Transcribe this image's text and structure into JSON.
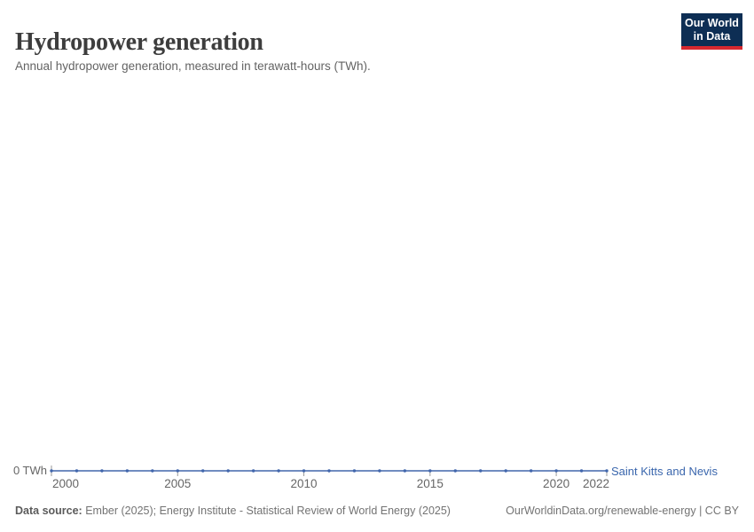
{
  "header": {
    "title": "Hydropower generation",
    "subtitle": "Annual hydropower generation, measured in terawatt-hours (TWh)."
  },
  "logo": {
    "line1": "Our World",
    "line2": "in Data",
    "bg_color": "#0d2e54",
    "accent_color": "#d7282f"
  },
  "chart_data": {
    "type": "line",
    "title": "Hydropower generation",
    "subtitle": "Annual hydropower generation, measured in terawatt-hours (TWh).",
    "x_range": [
      2000,
      2022
    ],
    "ylim": [
      0,
      0
    ],
    "grid": false,
    "legend_position": "end-of-line",
    "y_axis_label": "0 TWh",
    "x_ticks": [
      {
        "year": 2000,
        "label": "2000"
      },
      {
        "year": 2005,
        "label": "2005"
      },
      {
        "year": 2010,
        "label": "2010"
      },
      {
        "year": 2015,
        "label": "2015"
      },
      {
        "year": 2020,
        "label": "2020"
      },
      {
        "year": 2022,
        "label": "2022"
      }
    ],
    "series": [
      {
        "name": "Saint Kitts and Nevis",
        "color": "#4166ac",
        "label_color": "#3a66ad",
        "x": [
          2000,
          2001,
          2002,
          2003,
          2004,
          2005,
          2006,
          2007,
          2008,
          2009,
          2010,
          2011,
          2012,
          2013,
          2014,
          2015,
          2016,
          2017,
          2018,
          2019,
          2020,
          2021,
          2022
        ],
        "values": [
          0,
          0,
          0,
          0,
          0,
          0,
          0,
          0,
          0,
          0,
          0,
          0,
          0,
          0,
          0,
          0,
          0,
          0,
          0,
          0,
          0,
          0,
          0
        ]
      }
    ],
    "tick_color": "#9a9a9a"
  },
  "footer": {
    "datasource_label": "Data source:",
    "datasource_text": " Ember (2025); Energy Institute - Statistical Review of World Energy (2025)",
    "link_text": "OurWorldinData.org/renewable-energy | CC BY"
  }
}
